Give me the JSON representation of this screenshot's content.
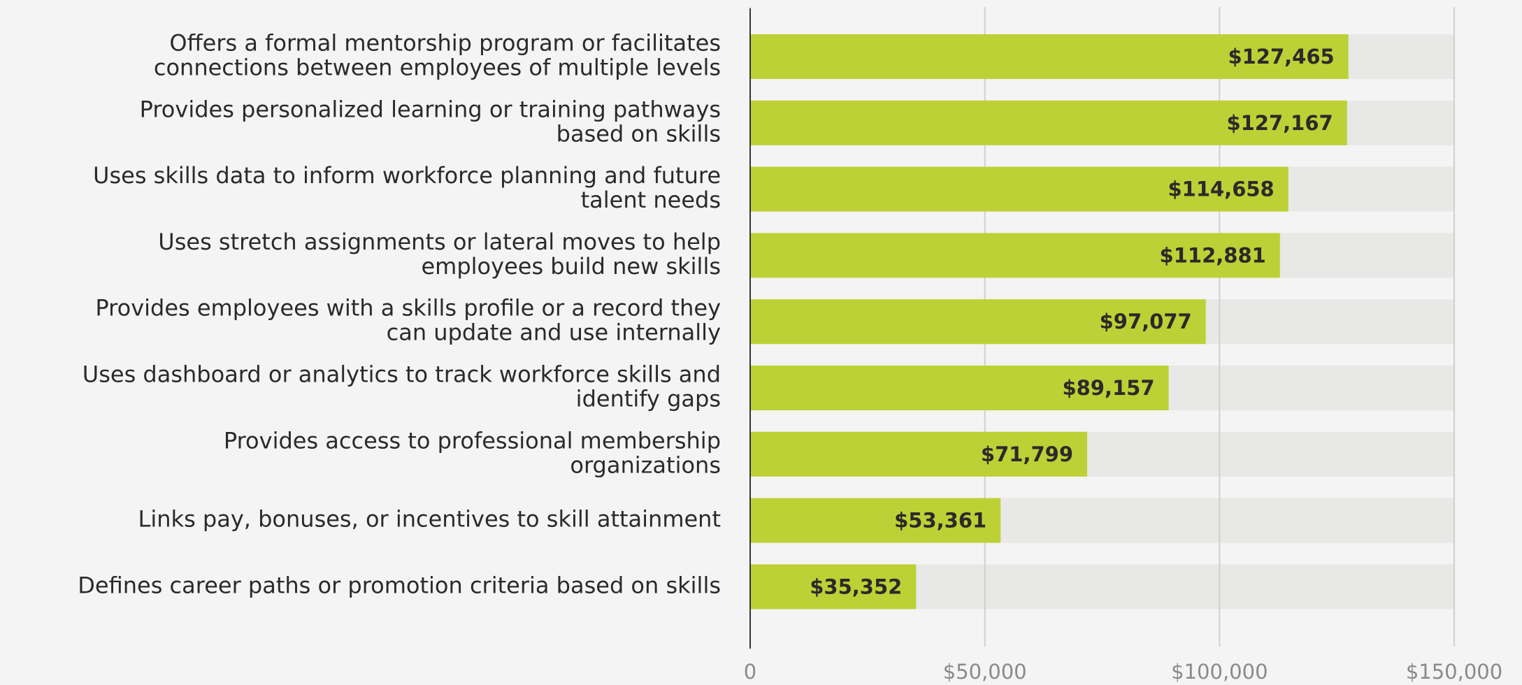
{
  "chart_data": {
    "type": "barh",
    "categories": [
      [
        "Offers a formal mentorship program or facilitates",
        "connections between employees of multiple levels"
      ],
      [
        "Provides personalized learning or training pathways",
        "based on skills"
      ],
      [
        "Uses skills data to inform workforce planning and future",
        "talent needs"
      ],
      [
        "Uses stretch assignments or lateral moves to help",
        "employees build new skills"
      ],
      [
        "Provides employees with a skills profile or a record they",
        "can update and use internally"
      ],
      [
        "Uses dashboard or analytics to track workforce skills and",
        "identify gaps"
      ],
      [
        "Provides access to professional membership",
        "organizations"
      ],
      [
        "Links pay, bonuses, or incentives to skill attainment"
      ],
      [
        "Defines career paths or promotion criteria based on skills"
      ]
    ],
    "values": [
      127465,
      127167,
      114658,
      112881,
      97077,
      89157,
      71799,
      53361,
      35352
    ],
    "value_labels": [
      "$127,465",
      "$127,167",
      "$114,658",
      "$112,881",
      "$97,077",
      "$89,157",
      "$71,799",
      "$53,361",
      "$35,352"
    ],
    "color": "#bcd135",
    "xlim": [
      0,
      150000
    ],
    "xticks": [
      0,
      {
        "value": 50000,
        "label": "$50,000"
      },
      {
        "value": 100000,
        "label": "$100,000"
      },
      {
        "value": 150000,
        "label": "$150,000"
      }
    ],
    "grid": true
  }
}
